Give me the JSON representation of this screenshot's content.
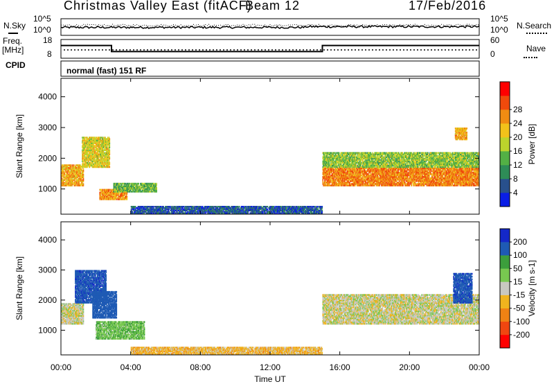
{
  "header": {
    "station": "Christmas Valley East (fitACF)",
    "beam": "Beam 12",
    "date": "17/Feb/2016"
  },
  "nsky_panel": {
    "left_label": "N.Sky",
    "left_ticks": [
      "10^5",
      "10^0"
    ],
    "right_label": "N.Search",
    "right_ticks": [
      "10^5",
      "10^0"
    ]
  },
  "freq_panel": {
    "left_label_1": "Freq.",
    "left_label_2": "[MHz]",
    "left_ticks": [
      "18",
      "8"
    ],
    "right_label": "Nave",
    "right_ticks": [
      "60",
      "0"
    ]
  },
  "cpid_panel": {
    "label": "CPID",
    "text": "normal (fast) 151 RF"
  },
  "time_axis": {
    "ticks": [
      "00:00",
      "04:00",
      "08:00",
      "12:00",
      "16:00",
      "20:00",
      "00:00"
    ],
    "label": "Time UT"
  },
  "chart_data": [
    {
      "type": "heatmap",
      "ylabel": "Slant Range [km]",
      "y_ticks": [
        1000,
        2000,
        3000,
        4000
      ],
      "ylim": [
        180,
        4600
      ],
      "xlim_hours": [
        0,
        24
      ],
      "colorbar": {
        "label": "Power [dB]",
        "ticks": [
          4,
          8,
          12,
          16,
          20,
          24,
          28
        ],
        "colors": [
          "#0a1ee6",
          "#28508c",
          "#2e8c57",
          "#53b045",
          "#bcd42c",
          "#f2c21a",
          "#f08c12",
          "#f04a0c",
          "#ff0000"
        ]
      },
      "regions": [
        {
          "t0": 0.0,
          "t1": 1.3,
          "r0": 1100,
          "r1": 1800,
          "value": 24
        },
        {
          "t0": 1.2,
          "t1": 2.8,
          "r0": 1700,
          "r1": 2700,
          "value": 20
        },
        {
          "t0": 2.2,
          "t1": 3.8,
          "r0": 650,
          "r1": 1000,
          "value": 26
        },
        {
          "t0": 3.0,
          "t1": 5.5,
          "r0": 900,
          "r1": 1200,
          "value": 14
        },
        {
          "t0": 15.0,
          "t1": 24.0,
          "r0": 1100,
          "r1": 1700,
          "value": 27
        },
        {
          "t0": 15.0,
          "t1": 24.0,
          "r0": 1700,
          "r1": 2200,
          "value": 16
        },
        {
          "t0": 22.6,
          "t1": 23.3,
          "r0": 2600,
          "r1": 3000,
          "value": 24
        },
        {
          "t0": 4.0,
          "t1": 15.0,
          "r0": 200,
          "r1": 450,
          "value": 6
        }
      ]
    },
    {
      "type": "heatmap",
      "ylabel": "Slant Range [km]",
      "y_ticks": [
        1000,
        2000,
        3000,
        4000
      ],
      "ylim": [
        180,
        4600
      ],
      "xlim_hours": [
        0,
        24
      ],
      "colorbar": {
        "label": "Velocity [m s-1]",
        "ticks": [
          200,
          100,
          50,
          15,
          -15,
          -50,
          -100,
          -200
        ],
        "colors": [
          "#1428c8",
          "#1e5ab4",
          "#3c9e3c",
          "#78c850",
          "#c8c8c0",
          "#f0b41e",
          "#f08214",
          "#f04610",
          "#ff0000"
        ]
      },
      "regions": [
        {
          "t0": 0.0,
          "t1": 1.3,
          "r0": 1200,
          "r1": 1900,
          "value": 0
        },
        {
          "t0": 0.8,
          "t1": 2.6,
          "r0": 1900,
          "r1": 3000,
          "value": 180
        },
        {
          "t0": 1.8,
          "t1": 3.2,
          "r0": 1400,
          "r1": 2300,
          "value": 150
        },
        {
          "t0": 2.0,
          "t1": 4.8,
          "r0": 700,
          "r1": 1300,
          "value": 40
        },
        {
          "t0": 15.0,
          "t1": 24.0,
          "r0": 1200,
          "r1": 2200,
          "value": 0
        },
        {
          "t0": 22.5,
          "t1": 23.6,
          "r0": 1900,
          "r1": 2900,
          "value": 180
        },
        {
          "t0": 4.0,
          "t1": 15.0,
          "r0": 200,
          "r1": 450,
          "value": -30
        }
      ]
    }
  ],
  "freq_series": {
    "t_hours": [
      0,
      2.9,
      2.9,
      15.0,
      15.0,
      24
    ],
    "mhz": [
      15,
      15,
      11,
      11,
      15,
      15
    ]
  }
}
